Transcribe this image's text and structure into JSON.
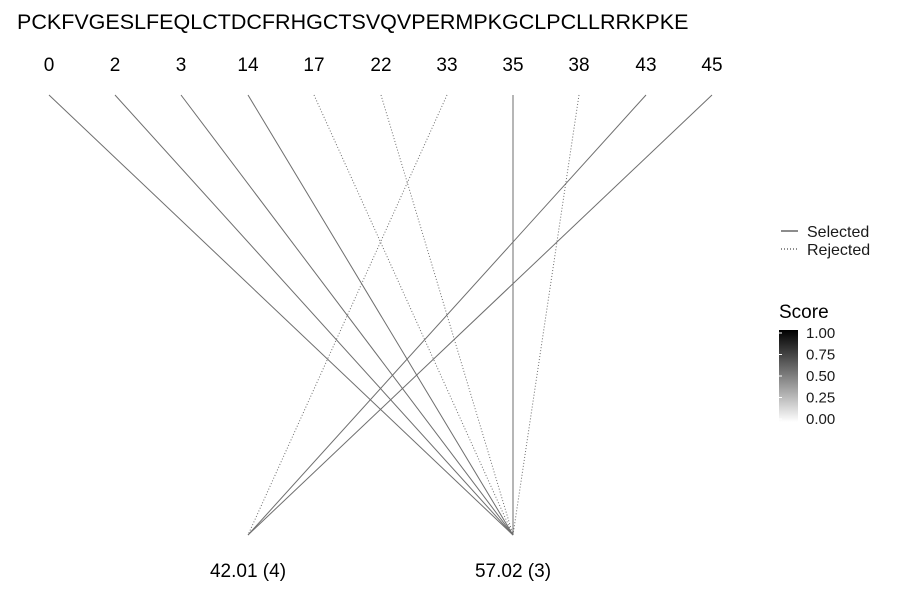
{
  "sequence": "PCKFVGESLFEQLCTDCFRHGCTSVQVPERMPKGCLPCLLRRKPKE",
  "positions": [
    "0",
    "2",
    "3",
    "14",
    "17",
    "22",
    "33",
    "35",
    "38",
    "43",
    "45"
  ],
  "groups": [
    {
      "label": "42.01 (4)"
    },
    {
      "label": "57.02 (3)"
    }
  ],
  "connections": [
    {
      "from": "0",
      "to_group": 1,
      "status": "Selected"
    },
    {
      "from": "2",
      "to_group": 1,
      "status": "Selected"
    },
    {
      "from": "3",
      "to_group": 1,
      "status": "Selected"
    },
    {
      "from": "14",
      "to_group": 1,
      "status": "Selected"
    },
    {
      "from": "17",
      "to_group": 1,
      "status": "Rejected"
    },
    {
      "from": "22",
      "to_group": 1,
      "status": "Rejected"
    },
    {
      "from": "33",
      "to_group": 0,
      "status": "Rejected"
    },
    {
      "from": "35",
      "to_group": 1,
      "status": "Selected"
    },
    {
      "from": "38",
      "to_group": 1,
      "status": "Rejected"
    },
    {
      "from": "43",
      "to_group": 0,
      "status": "Selected"
    },
    {
      "from": "45",
      "to_group": 0,
      "status": "Selected"
    }
  ],
  "line_legend": [
    {
      "label": "Selected",
      "style": "solid"
    },
    {
      "label": "Rejected",
      "style": "dotted"
    }
  ],
  "score_legend": {
    "title": "Score",
    "ticks": [
      "1.00",
      "0.75",
      "0.50",
      "0.25",
      "0.00"
    ],
    "color_high": "#000000",
    "color_low": "#ffffff"
  },
  "colors": {
    "line": "#6e6e6e"
  }
}
